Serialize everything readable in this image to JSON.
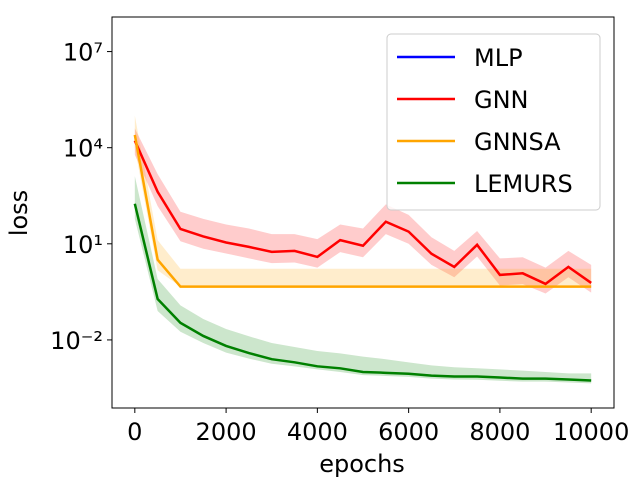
{
  "chart_data": {
    "type": "line",
    "xlabel": "epochs",
    "ylabel": "loss",
    "log_y": true,
    "legend": "upper right",
    "x": [
      0,
      500,
      1000,
      1500,
      2000,
      2500,
      3000,
      3500,
      4000,
      4500,
      5000,
      5500,
      6000,
      6500,
      7000,
      7500,
      8000,
      8500,
      9000,
      9500,
      10000
    ],
    "xlim": [
      -500,
      10500
    ],
    "xticks": [
      0,
      2000,
      4000,
      6000,
      8000,
      10000
    ],
    "ylim": [
      7.5e-05,
      120000000.0
    ],
    "yticks": [
      {
        "value": 0.01,
        "label": "10⁻²"
      },
      {
        "value": 10,
        "label": "10¹"
      },
      {
        "value": 10000,
        "label": "10⁴"
      },
      {
        "value": 10000000,
        "label": "10⁷"
      }
    ],
    "series": [
      {
        "name": "MLP",
        "color": "#0000ff",
        "values": [
          null,
          null,
          null,
          null,
          null,
          null,
          null,
          null,
          null,
          null,
          null,
          null,
          null,
          null,
          null,
          null,
          null,
          null,
          null,
          null,
          null
        ]
      },
      {
        "name": "GNN",
        "color": "#ff0000",
        "values": [
          16600,
          420,
          29,
          17,
          11,
          8,
          5.6,
          6,
          3.9,
          13,
          8.7,
          49,
          24,
          4.9,
          1.9,
          9.3,
          1.07,
          1.2,
          0.56,
          1.9,
          0.6
        ],
        "upper": [
          40000,
          1500,
          100,
          60,
          40,
          30,
          20,
          20,
          14,
          40,
          30,
          170,
          80,
          16,
          6,
          25,
          3.5,
          3.8,
          1.8,
          6,
          2.2
        ],
        "lower": [
          6000,
          150,
          12,
          7,
          5,
          3.5,
          2.5,
          2.6,
          1.8,
          5.5,
          3.8,
          20,
          10,
          2.2,
          0.9,
          4,
          0.5,
          0.55,
          0.28,
          0.9,
          0.3
        ]
      },
      {
        "name": "GNNSA",
        "color": "#ffa500",
        "values": [
          25000,
          3.2,
          0.46,
          0.46,
          0.46,
          0.46,
          0.46,
          0.46,
          0.46,
          0.46,
          0.46,
          0.46,
          0.46,
          0.46,
          0.46,
          0.46,
          0.46,
          0.46,
          0.46,
          0.46,
          0.46
        ],
        "upper": [
          100000,
          13,
          1.66,
          1.66,
          1.66,
          1.66,
          1.66,
          1.66,
          1.66,
          1.66,
          1.66,
          1.66,
          1.66,
          1.66,
          1.66,
          1.66,
          1.66,
          1.66,
          1.66,
          1.66,
          1.66
        ],
        "lower": [
          10000,
          1.5,
          0.46,
          0.46,
          0.46,
          0.46,
          0.46,
          0.46,
          0.46,
          0.46,
          0.46,
          0.46,
          0.46,
          0.46,
          0.46,
          0.46,
          0.46,
          0.46,
          0.46,
          0.46,
          0.46
        ]
      },
      {
        "name": "LEMURS",
        "color": "#008000",
        "values": [
          178,
          0.19,
          0.034,
          0.0133,
          0.0065,
          0.0039,
          0.0025,
          0.002,
          0.0015,
          0.0013,
          0.001,
          0.00094,
          0.00088,
          0.00077,
          0.00072,
          0.00072,
          0.00067,
          0.00062,
          0.00062,
          0.00058,
          0.00054
        ],
        "upper": [
          1300,
          0.8,
          0.12,
          0.045,
          0.022,
          0.013,
          0.008,
          0.006,
          0.0045,
          0.0038,
          0.003,
          0.0025,
          0.002,
          0.0016,
          0.0014,
          0.0013,
          0.0012,
          0.0011,
          0.001,
          0.0009,
          0.0009
        ],
        "lower": [
          60,
          0.08,
          0.018,
          0.008,
          0.004,
          0.0026,
          0.0018,
          0.0015,
          0.0012,
          0.001,
          0.0008,
          0.00075,
          0.0007,
          0.00062,
          0.00058,
          0.00057,
          0.00053,
          0.0005,
          0.0005,
          0.00047,
          0.00044
        ]
      }
    ]
  }
}
